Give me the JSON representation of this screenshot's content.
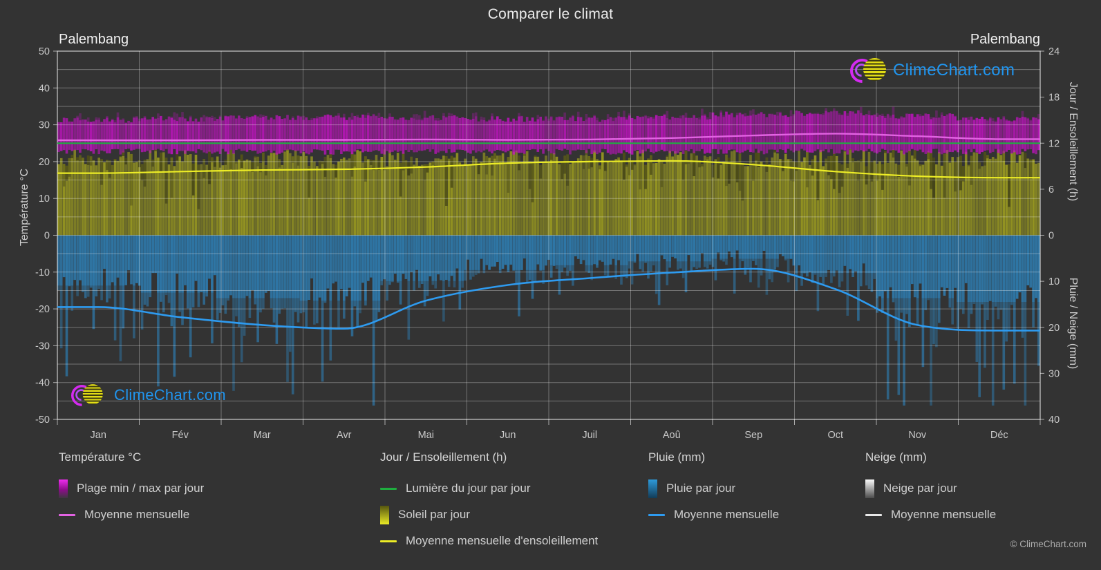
{
  "title": "Comparer le climat",
  "location_left": "Palembang",
  "location_right": "Palembang",
  "watermark_text": "ClimeChart.com",
  "copyright": "© ClimeChart.com",
  "axes": {
    "left": {
      "label": "Température °C",
      "ticks": [
        50,
        40,
        30,
        20,
        10,
        0,
        -10,
        -20,
        -30,
        -40,
        -50
      ],
      "range": [
        -50,
        50
      ]
    },
    "right_top": {
      "label": "Jour / Ensoleillement (h)",
      "ticks": [
        24,
        18,
        12,
        6,
        0
      ],
      "range": [
        0,
        24
      ]
    },
    "right_bottom": {
      "label": "Pluie / Neige (mm)",
      "ticks": [
        10,
        20,
        30,
        40
      ],
      "range": [
        0,
        40
      ],
      "inverted": true
    }
  },
  "chart_data": {
    "type": "area",
    "title": "Comparer le climat",
    "location": "Palembang",
    "months": [
      "Jan",
      "Fév",
      "Mar",
      "Avr",
      "Mai",
      "Jun",
      "Juil",
      "Aoû",
      "Sep",
      "Oct",
      "Nov",
      "Déc"
    ],
    "grid": true,
    "series": [
      {
        "name": "temp_max_daily_c",
        "values": [
          31.3,
          31.6,
          31.9,
          32.0,
          31.9,
          31.6,
          31.6,
          32.0,
          32.8,
          33.2,
          32.3,
          31.5
        ]
      },
      {
        "name": "temp_min_daily_c",
        "values": [
          22.8,
          22.8,
          22.8,
          22.8,
          22.8,
          22.8,
          22.8,
          22.8,
          22.8,
          22.8,
          22.8,
          22.8
        ]
      },
      {
        "name": "temp_mean_monthly_c",
        "values": [
          25.8,
          25.8,
          25.9,
          25.9,
          26.0,
          25.9,
          26.0,
          26.4,
          27.1,
          27.6,
          26.9,
          26.1
        ]
      },
      {
        "name": "daylight_h",
        "values": [
          12.0,
          12.0,
          12.0,
          12.0,
          12.0,
          12.0,
          12.0,
          12.0,
          12.0,
          12.0,
          12.0,
          12.0
        ]
      },
      {
        "name": "sunshine_mean_h",
        "values": [
          8.1,
          8.3,
          8.5,
          8.6,
          8.9,
          9.4,
          9.6,
          9.7,
          9.2,
          8.3,
          7.7,
          7.5
        ]
      },
      {
        "name": "sunshine_daily_max_h",
        "values": [
          10.2,
          10.2,
          10.2,
          10.2,
          10.2,
          10.2,
          10.2,
          10.2,
          10.2,
          10.2,
          10.2,
          10.2
        ]
      },
      {
        "name": "rain_mean_mm",
        "values": [
          15.6,
          17.8,
          19.5,
          20.3,
          14.2,
          10.8,
          9.3,
          8.1,
          7.3,
          11.7,
          19.5,
          20.7
        ]
      },
      {
        "name": "snow_mean_mm",
        "values": [
          0,
          0,
          0,
          0,
          0,
          0,
          0,
          0,
          0,
          0,
          0,
          0
        ]
      }
    ],
    "ylim_temp": [
      -50,
      50
    ],
    "ylim_sun_h": [
      0,
      24
    ],
    "ylim_precip_mm": [
      0,
      40
    ]
  },
  "colors": {
    "background": "#333333",
    "grid": "rgba(255,255,255,0.32)",
    "frame": "rgba(255,255,255,0.6)",
    "tick_text": "#c9c9c9",
    "temp_band": "#c911c9",
    "temp_mean_line": "#e263e2",
    "daylight_line": "#1fae3f",
    "sun_band": "#b4b41c",
    "sun_dark": "#27270f",
    "sun_mean_line": "#eded26",
    "rain_band": "#2d85c0",
    "rain_mean_line": "#2e9bf0",
    "snow_line": "#e8e8e8",
    "brand_blue": "#2095ef"
  },
  "legend": {
    "groups": [
      {
        "title": "Température °C",
        "items": [
          {
            "swatch": "grad-magenta",
            "label": "Plage min / max par jour"
          },
          {
            "swatch": "line-magenta",
            "label": "Moyenne mensuelle"
          }
        ]
      },
      {
        "title": "Jour / Ensoleillement (h)",
        "items": [
          {
            "swatch": "line-green",
            "label": "Lumière du jour par jour"
          },
          {
            "swatch": "grad-yellow",
            "label": "Soleil par jour"
          },
          {
            "swatch": "line-yellow",
            "label": "Moyenne mensuelle d'ensoleillement"
          }
        ]
      },
      {
        "title": "Pluie (mm)",
        "items": [
          {
            "swatch": "grad-blue",
            "label": "Pluie par jour"
          },
          {
            "swatch": "line-blue",
            "label": "Moyenne mensuelle"
          }
        ]
      },
      {
        "title": "Neige (mm)",
        "items": [
          {
            "swatch": "grad-snow",
            "label": "Neige par jour"
          },
          {
            "swatch": "line-snow",
            "label": "Moyenne mensuelle"
          }
        ]
      }
    ]
  }
}
